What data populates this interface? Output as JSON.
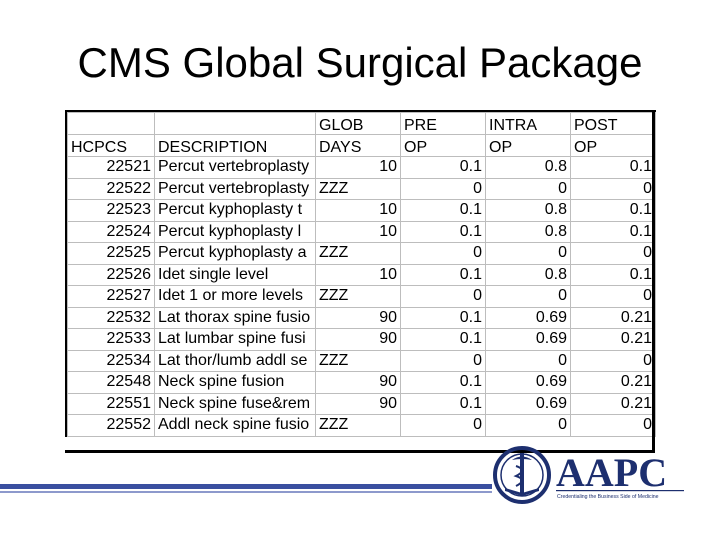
{
  "slide": {
    "title": "CMS Global Surgical Package"
  },
  "table": {
    "header_top": [
      "",
      "",
      "GLOB",
      "PRE",
      "INTRA",
      "POST"
    ],
    "header_bottom": [
      "HCPCS",
      "DESCRIPTION",
      "DAYS",
      "OP",
      "OP",
      "OP"
    ],
    "rows": [
      {
        "hcpcs": "22521",
        "description": "Percut vertebroplasty",
        "glob_days": "10",
        "pre_op": "0.1",
        "intra_op": "0.8",
        "post_op": "0.1"
      },
      {
        "hcpcs": "22522",
        "description": "Percut vertebroplasty",
        "glob_days": "ZZZ",
        "pre_op": "0",
        "intra_op": "0",
        "post_op": "0"
      },
      {
        "hcpcs": "22523",
        "description": "Percut kyphoplasty t",
        "glob_days": "10",
        "pre_op": "0.1",
        "intra_op": "0.8",
        "post_op": "0.1"
      },
      {
        "hcpcs": "22524",
        "description": "Percut kyphoplasty l",
        "glob_days": "10",
        "pre_op": "0.1",
        "intra_op": "0.8",
        "post_op": "0.1"
      },
      {
        "hcpcs": "22525",
        "description": "Percut kyphoplasty a",
        "glob_days": "ZZZ",
        "pre_op": "0",
        "intra_op": "0",
        "post_op": "0"
      },
      {
        "hcpcs": "22526",
        "description": "Idet single level",
        "glob_days": "10",
        "pre_op": "0.1",
        "intra_op": "0.8",
        "post_op": "0.1"
      },
      {
        "hcpcs": "22527",
        "description": "Idet 1 or more levels",
        "glob_days": "ZZZ",
        "pre_op": "0",
        "intra_op": "0",
        "post_op": "0"
      },
      {
        "hcpcs": "22532",
        "description": "Lat thorax spine fusio",
        "glob_days": "90",
        "pre_op": "0.1",
        "intra_op": "0.69",
        "post_op": "0.21"
      },
      {
        "hcpcs": "22533",
        "description": "Lat lumbar spine fusi",
        "glob_days": "90",
        "pre_op": "0.1",
        "intra_op": "0.69",
        "post_op": "0.21"
      },
      {
        "hcpcs": "22534",
        "description": "Lat thor/lumb addl se",
        "glob_days": "ZZZ",
        "pre_op": "0",
        "intra_op": "0",
        "post_op": "0"
      },
      {
        "hcpcs": "22548",
        "description": "Neck spine fusion",
        "glob_days": "90",
        "pre_op": "0.1",
        "intra_op": "0.69",
        "post_op": "0.21"
      },
      {
        "hcpcs": "22551",
        "description": "Neck spine fuse&rem",
        "glob_days": "90",
        "pre_op": "0.1",
        "intra_op": "0.69",
        "post_op": "0.21"
      },
      {
        "hcpcs": "22552",
        "description": "Addl neck spine fusio",
        "glob_days": "ZZZ",
        "pre_op": "0",
        "intra_op": "0",
        "post_op": "0"
      }
    ]
  },
  "logo": {
    "wordmark": "AAPC",
    "tagline": "Credentialing the Business Side of Medicine",
    "colors": {
      "navy": "#1d2f6f",
      "blue": "#3a4fa0",
      "bar_light": "#8d99cc"
    }
  }
}
